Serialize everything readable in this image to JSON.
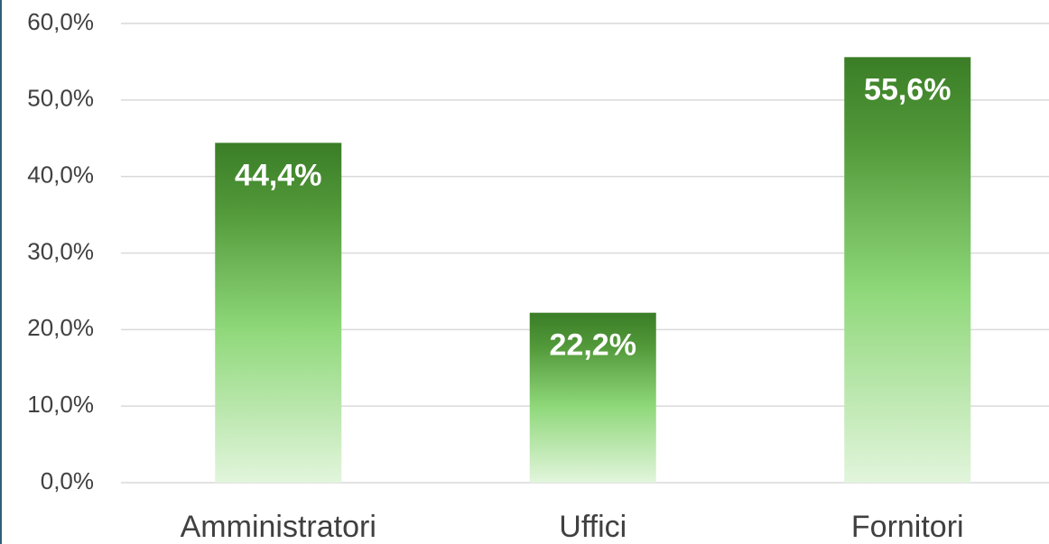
{
  "chart_data": {
    "type": "bar",
    "categories": [
      "Amministratori",
      "Uffici",
      "Fornitori"
    ],
    "values": [
      44.4,
      22.2,
      55.6
    ],
    "value_labels": [
      "44,4%",
      "22,2%",
      "55,6%"
    ],
    "color": "#4a8f33",
    "ylim": [
      0,
      60
    ],
    "yticks": [
      {
        "value": 0,
        "label": "0,0%"
      },
      {
        "value": 10,
        "label": "10,0%"
      },
      {
        "value": 20,
        "label": "20,0%"
      },
      {
        "value": 30,
        "label": "30,0%"
      },
      {
        "value": 40,
        "label": "40,0%"
      },
      {
        "value": 50,
        "label": "50,0%"
      },
      {
        "value": 60,
        "label": "60,0%"
      }
    ],
    "grid": true
  }
}
